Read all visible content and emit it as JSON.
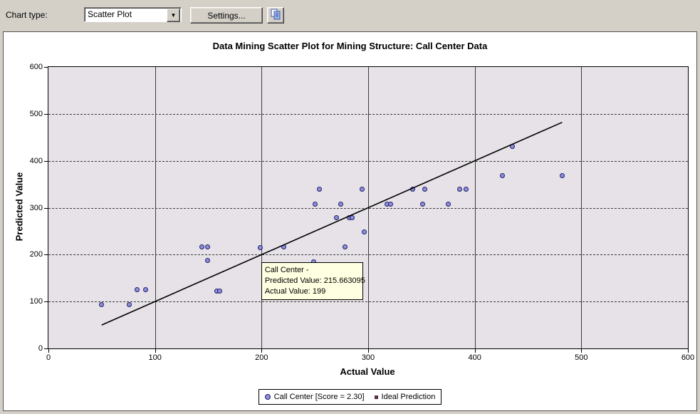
{
  "toolbar": {
    "chart_type_label": "Chart type:",
    "chart_type_value": "Scatter Plot",
    "settings_label": "Settings..."
  },
  "chart": {
    "tooltip": {
      "lines": [
        "Call Center -",
        "Predicted Value: 215.663095",
        "Actual Value: 199"
      ],
      "anchor_point": [
        199,
        215.663095
      ]
    },
    "legend": [
      {
        "marker": "circle",
        "label": "Call Center [Score = 2.30]"
      },
      {
        "marker": "square",
        "label": "Ideal Prediction"
      }
    ]
  },
  "chart_data": {
    "type": "scatter",
    "title": "Data Mining Scatter Plot for Mining Structure: Call Center Data",
    "xlabel": "Actual Value",
    "ylabel": "Predicted Value",
    "xlim": [
      0,
      600
    ],
    "ylim": [
      0,
      600
    ],
    "xticks": [
      0,
      100,
      200,
      300,
      400,
      500,
      600
    ],
    "yticks": [
      0,
      100,
      200,
      300,
      400,
      500,
      600
    ],
    "grid": true,
    "legend_position": "bottom",
    "series": [
      {
        "name": "Call Center [Score = 2.30]",
        "type": "scatter",
        "points": [
          [
            50,
            93
          ],
          [
            76,
            93
          ],
          [
            83,
            125
          ],
          [
            91,
            125
          ],
          [
            144,
            216
          ],
          [
            149,
            216
          ],
          [
            149,
            187
          ],
          [
            158,
            123
          ],
          [
            161,
            123
          ],
          [
            199,
            215.66
          ],
          [
            221,
            216
          ],
          [
            249,
            184
          ],
          [
            250,
            308
          ],
          [
            254,
            339
          ],
          [
            270,
            278
          ],
          [
            274,
            308
          ],
          [
            278,
            216
          ],
          [
            282,
            278
          ],
          [
            285,
            278
          ],
          [
            294,
            339
          ],
          [
            296,
            248
          ],
          [
            318,
            308
          ],
          [
            321,
            308
          ],
          [
            342,
            339
          ],
          [
            351,
            308
          ],
          [
            353,
            339
          ],
          [
            375,
            308
          ],
          [
            386,
            339
          ],
          [
            392,
            339
          ],
          [
            426,
            369
          ],
          [
            435,
            431
          ],
          [
            482,
            369
          ]
        ]
      },
      {
        "name": "Ideal Prediction",
        "type": "line",
        "points": [
          [
            50,
            50
          ],
          [
            482,
            482
          ]
        ]
      }
    ]
  },
  "colors": {
    "toolbar_bg": "#d4d0c8",
    "plot_bg": "#e6e2e7",
    "point_fill": "#8f8fdd",
    "point_border": "#1f1f66",
    "line": "#000000",
    "tooltip_bg": "#ffffe1",
    "legend_square": "#5e2b47"
  }
}
